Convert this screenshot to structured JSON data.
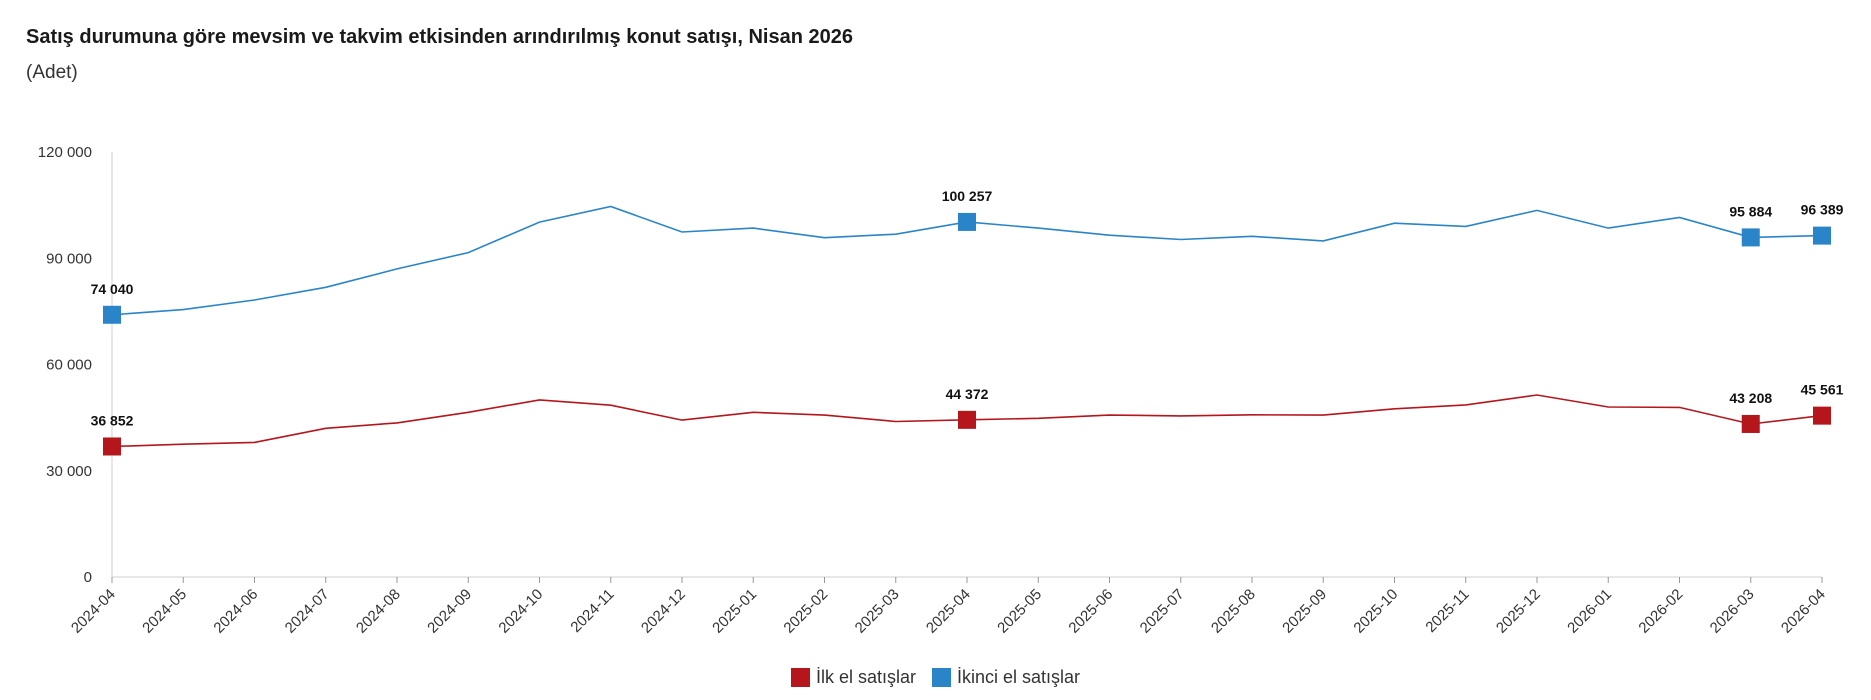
{
  "chart_data": {
    "type": "line",
    "title": "Satış durumuna göre mevsim ve takvim etkisinden arındırılmış konut satışı, Nisan 2026",
    "subtitle": "(Adet)",
    "categories": [
      "2024-04",
      "2024-05",
      "2024-06",
      "2024-07",
      "2024-08",
      "2024-09",
      "2024-10",
      "2024-11",
      "2024-12",
      "2025-01",
      "2025-02",
      "2025-03",
      "2025-04",
      "2025-05",
      "2025-06",
      "2025-07",
      "2025-08",
      "2025-09",
      "2025-10",
      "2025-11",
      "2025-12",
      "2026-01",
      "2026-02",
      "2026-03",
      "2026-04"
    ],
    "ylim": [
      0,
      120000
    ],
    "yticks": [
      {
        "value": 0,
        "label": "0"
      },
      {
        "value": 30000,
        "label": "30 000"
      },
      {
        "value": 60000,
        "label": "60 000"
      },
      {
        "value": 90000,
        "label": "90 000"
      },
      {
        "value": 120000,
        "label": "120 000"
      }
    ],
    "grid": false,
    "legend_position": "bottom-center",
    "series": [
      {
        "name": "İlk el satışlar",
        "color": "#b5161c",
        "values": [
          36852,
          37500,
          38000,
          42000,
          43500,
          46500,
          50000,
          48500,
          44300,
          46500,
          45700,
          43900,
          44372,
          44800,
          45700,
          45500,
          45800,
          45700,
          47500,
          48600,
          51400,
          48000,
          47900,
          43208,
          45561
        ],
        "labels": [
          {
            "index": 0,
            "text": "36 852"
          },
          {
            "index": 12,
            "text": "44 372"
          },
          {
            "index": 23,
            "text": "43 208"
          },
          {
            "index": 24,
            "text": "45 561"
          }
        ]
      },
      {
        "name": "İkinci el satışlar",
        "color": "#2a85c8",
        "values": [
          74040,
          75500,
          78200,
          81800,
          87000,
          91600,
          100200,
          104600,
          97400,
          98500,
          95800,
          96800,
          100257,
          98500,
          96500,
          95300,
          96200,
          94900,
          99900,
          99000,
          103500,
          98500,
          101500,
          95884,
          96389
        ],
        "labels": [
          {
            "index": 0,
            "text": "74 040"
          },
          {
            "index": 12,
            "text": "100 257"
          },
          {
            "index": 23,
            "text": "95 884"
          },
          {
            "index": 24,
            "text": "96 389"
          }
        ]
      }
    ]
  }
}
